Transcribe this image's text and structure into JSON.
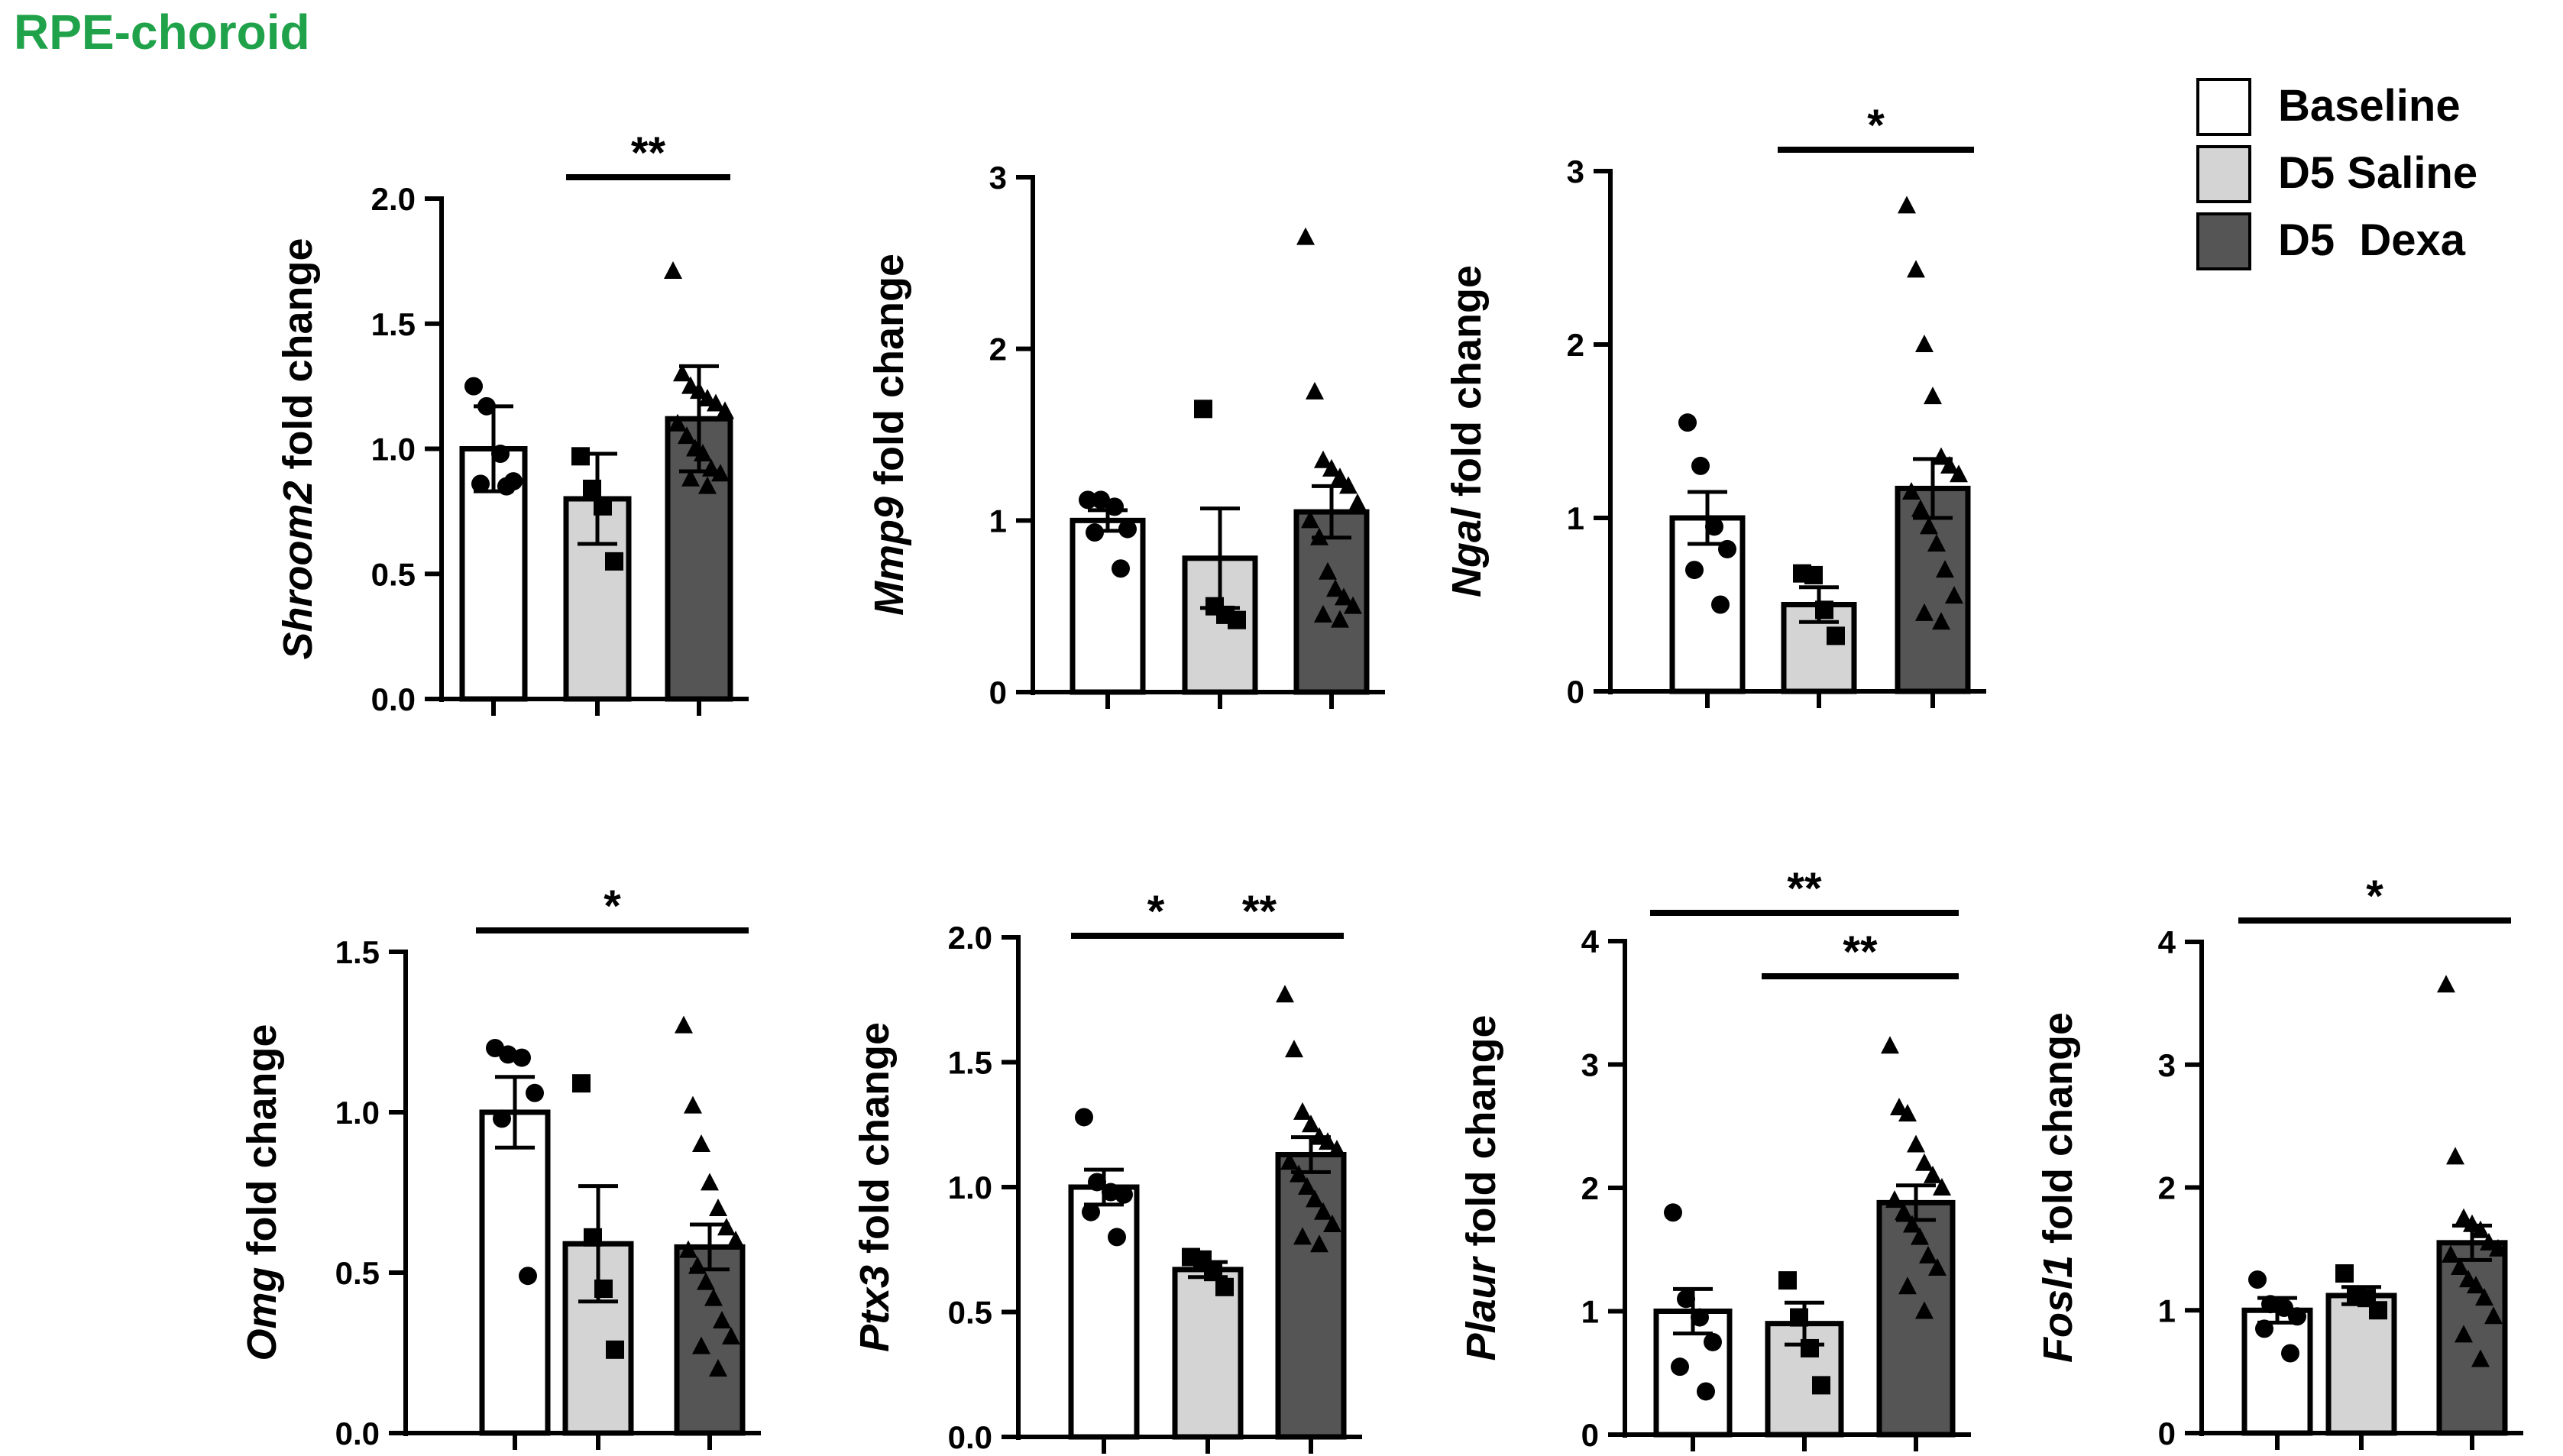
{
  "figure": {
    "panel_title": "RPE-choroid",
    "title_color": "#1fa24a"
  },
  "legend": {
    "placement": "top-right",
    "items": [
      {
        "label": "Baseline",
        "color": "#ffffff"
      },
      {
        "label": "D5 Saline",
        "color": "#d4d4d4"
      },
      {
        "label": "D5  Dexa",
        "color": "#555555"
      }
    ]
  },
  "group_markers": [
    "circle",
    "square",
    "triangle"
  ],
  "chart_data": [
    {
      "type": "bar",
      "gene": "Shroom2",
      "ylabel_suffix": " fold change",
      "categories": [
        "Baseline",
        "D5 Saline",
        "D5  Dexa"
      ],
      "ylim": [
        0,
        2.0
      ],
      "yticks": [
        0,
        0.5,
        1.0,
        1.5,
        2.0
      ],
      "tick_decimals": 1,
      "series": [
        {
          "mean": 1.0,
          "error": 0.17,
          "points": [
            1.25,
            1.17,
            0.98,
            0.87,
            0.86,
            0.85
          ]
        },
        {
          "mean": 0.8,
          "error": 0.18,
          "points": [
            0.97,
            0.84,
            0.77,
            0.55
          ]
        },
        {
          "mean": 1.12,
          "error": 0.21,
          "points": [
            1.71,
            1.3,
            1.25,
            1.23,
            1.2,
            1.18,
            1.15,
            1.1,
            1.05,
            1.0,
            0.98,
            0.92,
            0.9,
            0.88,
            0.85
          ]
        }
      ],
      "significance": [
        {
          "from": 1,
          "to": 2,
          "label": "**"
        }
      ]
    },
    {
      "type": "bar",
      "gene": "Mmp9",
      "ylabel_suffix": " fold change",
      "categories": [
        "Baseline",
        "D5 Saline",
        "D5  Dexa"
      ],
      "ylim": [
        0,
        3
      ],
      "yticks": [
        0,
        1,
        2,
        3
      ],
      "tick_decimals": 0,
      "series": [
        {
          "mean": 1.0,
          "error": 0.06,
          "points": [
            1.12,
            1.12,
            1.08,
            0.95,
            0.93,
            0.72
          ]
        },
        {
          "mean": 0.78,
          "error": 0.29,
          "points": [
            1.65,
            0.5,
            0.45,
            0.42
          ]
        },
        {
          "mean": 1.05,
          "error": 0.15,
          "points": [
            2.65,
            1.75,
            1.35,
            1.3,
            1.25,
            1.2,
            1.1,
            1.0,
            0.9,
            0.7,
            0.6,
            0.55,
            0.5,
            0.45,
            0.42
          ]
        }
      ],
      "significance": []
    },
    {
      "type": "bar",
      "gene": "Ngal",
      "ylabel_suffix": " fold change",
      "categories": [
        "Baseline",
        "D5 Saline",
        "D5  Dexa"
      ],
      "ylim": [
        0,
        3
      ],
      "yticks": [
        0,
        1,
        2,
        3
      ],
      "tick_decimals": 0,
      "series": [
        {
          "mean": 1.0,
          "error": 0.15,
          "points": [
            1.55,
            1.3,
            0.95,
            0.82,
            0.7,
            0.5
          ]
        },
        {
          "mean": 0.5,
          "error": 0.1,
          "points": [
            0.68,
            0.67,
            0.47,
            0.32
          ]
        },
        {
          "mean": 1.17,
          "error": 0.17,
          "points": [
            2.8,
            2.43,
            2.0,
            1.7,
            1.35,
            1.3,
            1.25,
            1.15,
            1.05,
            0.95,
            0.85,
            0.7,
            0.55,
            0.45,
            0.4
          ]
        }
      ],
      "significance": [
        {
          "from": 1,
          "to": 2,
          "label": "*"
        }
      ]
    },
    {
      "type": "bar",
      "gene": "Omg",
      "ylabel_suffix": " fold change",
      "categories": [
        "Baseline",
        "D5 Saline",
        "D5  Dexa"
      ],
      "ylim": [
        0,
        1.5
      ],
      "yticks": [
        0,
        0.5,
        1.0,
        1.5
      ],
      "tick_decimals": 1,
      "series": [
        {
          "mean": 1.0,
          "error": 0.11,
          "points": [
            1.2,
            1.18,
            1.17,
            1.06,
            0.98,
            0.49
          ]
        },
        {
          "mean": 0.59,
          "error": 0.18,
          "points": [
            1.09,
            0.61,
            0.45,
            0.26
          ]
        },
        {
          "mean": 0.58,
          "error": 0.07,
          "points": [
            1.27,
            1.02,
            0.9,
            0.78,
            0.7,
            0.64,
            0.6,
            0.57,
            0.52,
            0.47,
            0.42,
            0.35,
            0.3,
            0.27,
            0.2
          ]
        }
      ],
      "significance": [
        {
          "from": 0,
          "to": 2,
          "label": "*"
        }
      ]
    },
    {
      "type": "bar",
      "gene": "Ptx3",
      "ylabel_suffix": " fold change",
      "categories": [
        "Baseline",
        "D5 Saline",
        "D5  Dexa"
      ],
      "ylim": [
        0,
        2.0
      ],
      "yticks": [
        0,
        0.5,
        1.0,
        1.5,
        2.0
      ],
      "tick_decimals": 1,
      "series": [
        {
          "mean": 1.0,
          "error": 0.07,
          "points": [
            1.28,
            1.02,
            0.98,
            0.97,
            0.9,
            0.8
          ]
        },
        {
          "mean": 0.67,
          "error": 0.03,
          "points": [
            0.72,
            0.71,
            0.66,
            0.6
          ]
        },
        {
          "mean": 1.13,
          "error": 0.07,
          "points": [
            1.77,
            1.55,
            1.3,
            1.25,
            1.2,
            1.18,
            1.15,
            1.1,
            1.05,
            1.0,
            0.95,
            0.9,
            0.85,
            0.8,
            0.77
          ]
        }
      ],
      "significance": [
        {
          "from": 0,
          "to": 1,
          "label": "*"
        },
        {
          "from": 1,
          "to": 2,
          "label": "**"
        }
      ]
    },
    {
      "type": "bar",
      "gene": "Plaur",
      "ylabel_suffix": " fold change",
      "categories": [
        "Baseline",
        "D5 Saline",
        "D5  Dexa"
      ],
      "ylim": [
        0,
        4
      ],
      "yticks": [
        0,
        1,
        2,
        3,
        4
      ],
      "tick_decimals": 0,
      "series": [
        {
          "mean": 1.0,
          "error": 0.18,
          "points": [
            1.8,
            1.1,
            0.95,
            0.75,
            0.55,
            0.35
          ]
        },
        {
          "mean": 0.9,
          "error": 0.17,
          "points": [
            1.25,
            0.95,
            0.7,
            0.4
          ]
        },
        {
          "mean": 1.88,
          "error": 0.14,
          "points": [
            3.15,
            2.65,
            2.6,
            2.35,
            2.2,
            2.1,
            2.0,
            1.9,
            1.8,
            1.7,
            1.6,
            1.45,
            1.35,
            1.2,
            1.0
          ]
        }
      ],
      "significance": [
        {
          "from": 0,
          "to": 2,
          "label": "**"
        },
        {
          "from": 1,
          "to": 2,
          "label": "**"
        }
      ]
    },
    {
      "type": "bar",
      "gene": "Fosl1",
      "ylabel_suffix": " fold change",
      "categories": [
        "Baseline",
        "D5 Saline",
        "D5  Dexa"
      ],
      "ylim": [
        0,
        4
      ],
      "yticks": [
        0,
        1,
        2,
        3,
        4
      ],
      "tick_decimals": 0,
      "series": [
        {
          "mean": 1.0,
          "error": 0.1,
          "points": [
            1.25,
            1.05,
            1.02,
            0.95,
            0.85,
            0.65
          ]
        },
        {
          "mean": 1.12,
          "error": 0.07,
          "points": [
            1.3,
            1.12,
            1.1,
            1.0
          ]
        },
        {
          "mean": 1.55,
          "error": 0.14,
          "points": [
            3.65,
            2.25,
            1.75,
            1.7,
            1.65,
            1.55,
            1.5,
            1.45,
            1.35,
            1.25,
            1.2,
            1.1,
            0.95,
            0.8,
            0.6
          ]
        }
      ],
      "significance": [
        {
          "from": 0,
          "to": 2,
          "label": "*"
        }
      ]
    }
  ]
}
